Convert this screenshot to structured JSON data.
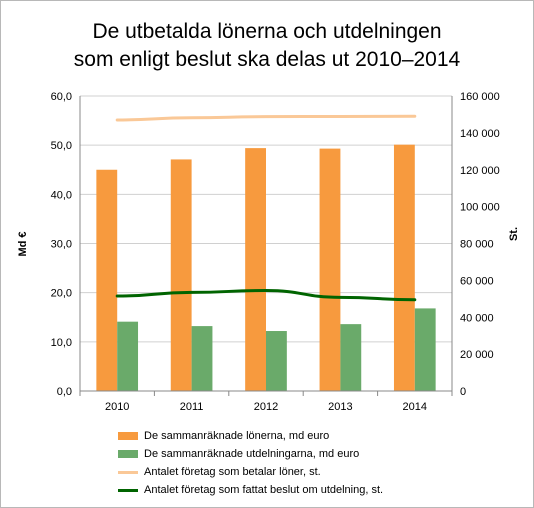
{
  "chart_data": {
    "type": "bar",
    "title_line1": "De utbetalda lönerna och utdelningen",
    "title_line2": "som enligt beslut ska delas ut 2010–2014",
    "categories": [
      "2010",
      "2011",
      "2012",
      "2013",
      "2014"
    ],
    "ylabel": "Md €",
    "ylabel_right": "St.",
    "ylim": [
      0,
      60
    ],
    "yticks": [
      "0,0",
      "10,0",
      "20,0",
      "30,0",
      "40,0",
      "50,0",
      "60,0"
    ],
    "ylim_right": [
      0,
      160000
    ],
    "yticks_right": [
      "0",
      "20 000",
      "40 000",
      "60 000",
      "80 000",
      "100 000",
      "120 000",
      "140 000",
      "160 000"
    ],
    "grid": true,
    "legend_position": "bottom",
    "series": [
      {
        "name": "De sammanräknade lönerna, md euro",
        "kind": "bar",
        "axis": "left",
        "color": "#f79a3e",
        "values": [
          45.0,
          47.1,
          49.4,
          49.3,
          50.1
        ]
      },
      {
        "name": "De sammanräknade utdelningarna, md euro",
        "kind": "bar",
        "axis": "left",
        "color": "#6aaa6a",
        "values": [
          14.1,
          13.2,
          12.2,
          13.6,
          16.8
        ]
      },
      {
        "name": "Antalet företag som betalar löner, st.",
        "kind": "line",
        "axis": "right",
        "color": "#fac897",
        "values": [
          147000,
          148200,
          148800,
          148900,
          149000
        ]
      },
      {
        "name": "Antalet företag som fattat beslut om utdelning, st.",
        "kind": "line",
        "axis": "right",
        "color": "#006400",
        "values": [
          51500,
          53500,
          54500,
          50800,
          49500
        ]
      }
    ]
  }
}
